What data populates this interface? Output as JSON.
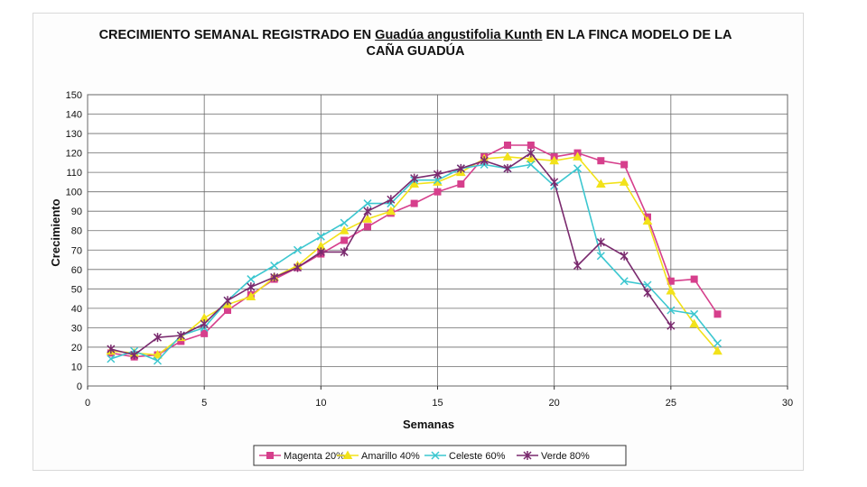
{
  "title": {
    "part1": "CRECIMIENTO SEMANAL REGISTRADO EN ",
    "species": "Guadúa angustifolia Kunth",
    "part2": " EN LA FINCA MODELO DE LA",
    "line2": "CAÑA GUADÚA"
  },
  "chart_data": {
    "type": "line",
    "title": "CRECIMIENTO SEMANAL REGISTRADO EN Guadúa angustifolia Kunth EN LA FINCA MODELO DE LA CAÑA GUADÚA",
    "xlabel": "Semanas",
    "ylabel": "Crecimiento",
    "xlim": [
      0,
      30
    ],
    "ylim": [
      0,
      150
    ],
    "xticks": [
      0,
      5,
      10,
      15,
      20,
      25,
      30
    ],
    "yticks": [
      0,
      10,
      20,
      30,
      40,
      50,
      60,
      70,
      80,
      90,
      100,
      110,
      120,
      130,
      140,
      150
    ],
    "grid": true,
    "legend_position": "bottom",
    "series": [
      {
        "name": "Magenta 20%",
        "color": "#d63f8c",
        "marker": "square",
        "x": [
          1,
          2,
          3,
          4,
          5,
          6,
          7,
          8,
          9,
          10,
          11,
          12,
          13,
          14,
          15,
          16,
          17,
          18,
          19,
          20,
          21,
          22,
          23,
          24,
          25,
          26,
          27
        ],
        "values": [
          17,
          15,
          16,
          23,
          27,
          39,
          47,
          55,
          61,
          68,
          75,
          82,
          89,
          94,
          100,
          104,
          118,
          124,
          124,
          118,
          120,
          116,
          114,
          87,
          54,
          55,
          37
        ]
      },
      {
        "name": "Amarillo 40%",
        "color": "#f2e21a",
        "marker": "triangle",
        "x": [
          1,
          2,
          3,
          4,
          5,
          6,
          7,
          8,
          9,
          10,
          11,
          12,
          13,
          14,
          15,
          16,
          17,
          18,
          19,
          20,
          21,
          22,
          23,
          24,
          25,
          26,
          27
        ],
        "values": [
          18,
          17,
          16,
          25,
          35,
          42,
          46,
          56,
          62,
          72,
          80,
          86,
          90,
          104,
          105,
          110,
          117,
          118,
          117,
          116,
          118,
          104,
          105,
          85,
          49,
          32,
          18
        ]
      },
      {
        "name": "Celeste 60%",
        "color": "#3cc7d0",
        "marker": "x",
        "x": [
          1,
          2,
          3,
          4,
          5,
          6,
          7,
          8,
          9,
          10,
          11,
          12,
          13,
          14,
          15,
          16,
          17,
          18,
          19,
          20,
          21,
          22,
          23,
          24,
          25,
          26,
          27
        ],
        "values": [
          14,
          18,
          13,
          26,
          30,
          44,
          55,
          62,
          70,
          77,
          84,
          94,
          94,
          106,
          106,
          112,
          114,
          112,
          114,
          103,
          112,
          67,
          54,
          52,
          39,
          37,
          22
        ]
      },
      {
        "name": "Verde 80%",
        "color": "#7a2a6e",
        "marker": "star",
        "x": [
          1,
          2,
          3,
          4,
          5,
          6,
          7,
          8,
          9,
          10,
          11,
          12,
          13,
          14,
          15,
          16,
          17,
          18,
          19,
          20,
          21,
          22,
          23,
          24,
          25
        ],
        "values": [
          19,
          16,
          25,
          26,
          32,
          44,
          51,
          56,
          61,
          69,
          69,
          90,
          96,
          107,
          109,
          112,
          116,
          112,
          120,
          105,
          62,
          74,
          67,
          48,
          31
        ]
      }
    ]
  }
}
